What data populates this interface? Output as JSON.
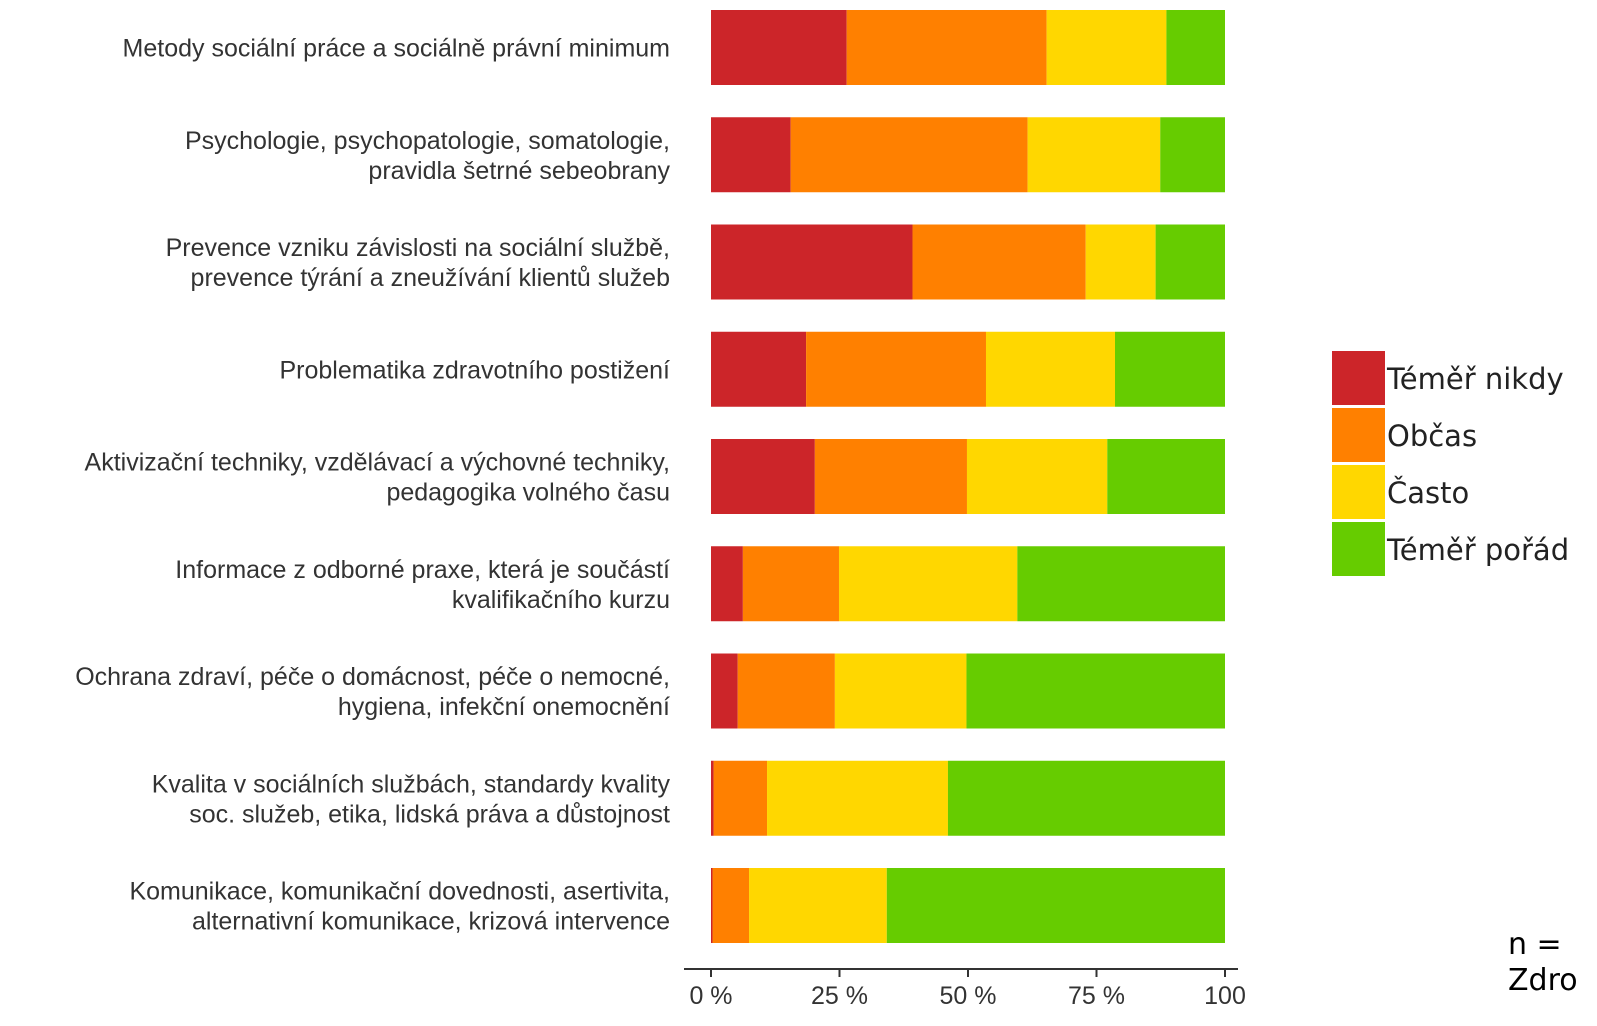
{
  "chart_data": {
    "type": "bar",
    "orientation": "horizontal",
    "stacked": true,
    "categories": [
      [
        "Metody sociální práce a sociálně právní minimum"
      ],
      [
        "Psychologie, psychopatologie, somatologie,",
        "pravidla šetrné sebeobrany"
      ],
      [
        "Prevence vzniku závislosti na sociální službě,",
        "prevence týrání a zneužívání klientů služeb"
      ],
      [
        "Problematika zdravotního postižení"
      ],
      [
        "Aktivizační techniky, vzdělávací a výchovné techniky,",
        "pedagogika volného času"
      ],
      [
        "Informace z odborné praxe, která je součástí",
        "kvalifikačního kurzu"
      ],
      [
        "Ochrana zdraví, péče o domácnost, péče o nemocné,",
        "hygiena, infekční onemocnění"
      ],
      [
        "Kvalita v sociálních službách, standardy kvality",
        "soc. služeb, etika, lidská práva a důstojnost"
      ],
      [
        "Komunikace, komunikační dovednosti, asertivita,",
        "alternativní komunikace, krizová intervence"
      ]
    ],
    "series": [
      {
        "name": "Téměř nikdy",
        "color": "#CC2529",
        "values": [
          26.4,
          15.5,
          39.2,
          18.5,
          20.2,
          6.2,
          5.2,
          0.5,
          0.3
        ]
      },
      {
        "name": "Občas",
        "color": "#FF8000",
        "values": [
          38.9,
          46.1,
          33.7,
          35.0,
          29.6,
          18.7,
          18.9,
          10.4,
          7.1
        ]
      },
      {
        "name": "Často",
        "color": "#FFD700",
        "values": [
          23.3,
          25.8,
          13.6,
          25.1,
          27.3,
          34.7,
          25.6,
          35.2,
          26.8
        ]
      },
      {
        "name": "Téměř pořád",
        "color": "#66CC00",
        "values": [
          11.4,
          12.6,
          13.5,
          21.4,
          22.9,
          40.4,
          50.3,
          53.9,
          65.8
        ]
      }
    ],
    "xlim": [
      0,
      100
    ],
    "xticks": [
      "0 %",
      "25 %",
      "50 %",
      "75 %",
      "100"
    ],
    "legend_position": "right",
    "grid": false
  },
  "notes": {
    "n_label": "n = ",
    "source_label": "Zdro"
  }
}
